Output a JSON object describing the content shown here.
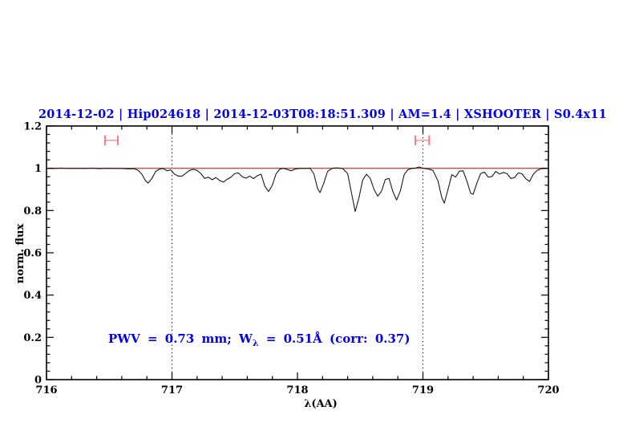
{
  "colors": {
    "text_blue": "#0000ee",
    "continuum_red": "#dd4444",
    "marker_cap_red": "#ee8585",
    "marker_bar_red": "#f4aeae",
    "spectrum_black": "#1a1a1a",
    "axis_black": "#000000"
  },
  "chart_data": {
    "type": "line",
    "title": "2014-12-02 | Hip024618 | 2014-12-03T08:18:51.309 | AM=1.4 | XSHOOTER | S0.4x11",
    "xlabel": "λ(AA)",
    "ylabel": "norm. flux",
    "xlim": [
      716,
      720
    ],
    "ylim": [
      0,
      1.2
    ],
    "x_major_ticks": [
      716,
      717,
      718,
      719,
      720
    ],
    "x_tick_labels": [
      "716",
      "717",
      "718",
      "719",
      "720"
    ],
    "x_minor_step": 0.2,
    "y_major_ticks": [
      0,
      0.2,
      0.4,
      0.6,
      0.8,
      1,
      1.2
    ],
    "y_tick_labels": [
      "0",
      "0.2",
      "0.4",
      "0.6",
      "0.8",
      "1",
      "1.2"
    ],
    "y_minor_step": 0.04,
    "grid": "off",
    "dotted_vlines": [
      717,
      719
    ],
    "continuum_line": {
      "y": 1.0
    },
    "range_markers": [
      {
        "x_left": 716.467,
        "x_right": 716.569,
        "y": 1.132,
        "cap_half_height": 0.023
      },
      {
        "x_left": 718.94,
        "x_right": 719.05,
        "y": 1.132,
        "cap_half_height": 0.023
      }
    ],
    "annotation": {
      "prefix": "PWV = 0.73 mm; W",
      "sub": "λ",
      "suffix": " = 0.51Å (corr: 0.37)"
    },
    "series": [
      {
        "name": "normalized spectrum",
        "points": [
          [
            716.0,
            1.0
          ],
          [
            716.06,
            0.999
          ],
          [
            716.12,
            1.001
          ],
          [
            716.18,
            0.999
          ],
          [
            716.24,
            1.0
          ],
          [
            716.3,
            0.999
          ],
          [
            716.36,
            1.001
          ],
          [
            716.42,
            0.998
          ],
          [
            716.48,
            1.0
          ],
          [
            716.54,
            0.999
          ],
          [
            716.6,
            0.999
          ],
          [
            716.66,
            0.997
          ],
          [
            716.7,
            0.998
          ],
          [
            716.73,
            0.99
          ],
          [
            716.76,
            0.972
          ],
          [
            716.79,
            0.94
          ],
          [
            716.81,
            0.93
          ],
          [
            716.84,
            0.952
          ],
          [
            716.87,
            0.985
          ],
          [
            716.9,
            0.996
          ],
          [
            716.93,
            0.999
          ],
          [
            716.96,
            0.988
          ],
          [
            716.99,
            0.992
          ],
          [
            717.02,
            0.972
          ],
          [
            717.05,
            0.963
          ],
          [
            717.08,
            0.963
          ],
          [
            717.11,
            0.976
          ],
          [
            717.14,
            0.99
          ],
          [
            717.17,
            0.995
          ],
          [
            717.2,
            0.99
          ],
          [
            717.23,
            0.975
          ],
          [
            717.26,
            0.952
          ],
          [
            717.29,
            0.958
          ],
          [
            717.32,
            0.946
          ],
          [
            717.35,
            0.956
          ],
          [
            717.38,
            0.942
          ],
          [
            717.41,
            0.935
          ],
          [
            717.44,
            0.948
          ],
          [
            717.47,
            0.958
          ],
          [
            717.5,
            0.975
          ],
          [
            717.53,
            0.978
          ],
          [
            717.56,
            0.96
          ],
          [
            717.59,
            0.953
          ],
          [
            717.62,
            0.963
          ],
          [
            717.65,
            0.951
          ],
          [
            717.68,
            0.965
          ],
          [
            717.71,
            0.972
          ],
          [
            717.74,
            0.915
          ],
          [
            717.77,
            0.89
          ],
          [
            717.8,
            0.92
          ],
          [
            717.83,
            0.975
          ],
          [
            717.86,
            0.996
          ],
          [
            717.89,
            1.0
          ],
          [
            717.92,
            0.994
          ],
          [
            717.95,
            0.988
          ],
          [
            717.98,
            0.996
          ],
          [
            718.02,
            1.0
          ],
          [
            718.06,
            0.999
          ],
          [
            718.1,
            1.001
          ],
          [
            718.13,
            0.975
          ],
          [
            718.16,
            0.905
          ],
          [
            718.18,
            0.885
          ],
          [
            718.21,
            0.93
          ],
          [
            718.24,
            0.985
          ],
          [
            718.28,
            1.001
          ],
          [
            718.32,
            1.002
          ],
          [
            718.36,
            0.999
          ],
          [
            718.4,
            0.975
          ],
          [
            718.43,
            0.885
          ],
          [
            718.46,
            0.795
          ],
          [
            718.49,
            0.86
          ],
          [
            718.52,
            0.945
          ],
          [
            718.55,
            0.972
          ],
          [
            718.58,
            0.952
          ],
          [
            718.61,
            0.9
          ],
          [
            718.64,
            0.868
          ],
          [
            718.67,
            0.892
          ],
          [
            718.7,
            0.947
          ],
          [
            718.73,
            0.952
          ],
          [
            718.76,
            0.89
          ],
          [
            718.79,
            0.85
          ],
          [
            718.82,
            0.893
          ],
          [
            718.85,
            0.97
          ],
          [
            718.88,
            0.993
          ],
          [
            718.91,
            0.999
          ],
          [
            718.94,
            1.001
          ],
          [
            718.97,
            1.006
          ],
          [
            719.0,
            1.0
          ],
          [
            719.04,
            0.997
          ],
          [
            719.08,
            0.99
          ],
          [
            719.12,
            0.94
          ],
          [
            719.15,
            0.862
          ],
          [
            719.17,
            0.835
          ],
          [
            719.2,
            0.9
          ],
          [
            719.23,
            0.97
          ],
          [
            719.26,
            0.958
          ],
          [
            719.29,
            0.986
          ],
          [
            719.32,
            0.988
          ],
          [
            719.35,
            0.94
          ],
          [
            719.38,
            0.882
          ],
          [
            719.4,
            0.877
          ],
          [
            719.43,
            0.93
          ],
          [
            719.46,
            0.975
          ],
          [
            719.49,
            0.982
          ],
          [
            719.52,
            0.958
          ],
          [
            719.55,
            0.961
          ],
          [
            719.58,
            0.985
          ],
          [
            719.61,
            0.973
          ],
          [
            719.64,
            0.98
          ],
          [
            719.67,
            0.975
          ],
          [
            719.7,
            0.952
          ],
          [
            719.73,
            0.956
          ],
          [
            719.76,
            0.978
          ],
          [
            719.79,
            0.974
          ],
          [
            719.82,
            0.95
          ],
          [
            719.85,
            0.938
          ],
          [
            719.88,
            0.972
          ],
          [
            719.91,
            0.99
          ],
          [
            719.94,
            0.998
          ],
          [
            720.0,
            1.0
          ]
        ]
      }
    ]
  }
}
